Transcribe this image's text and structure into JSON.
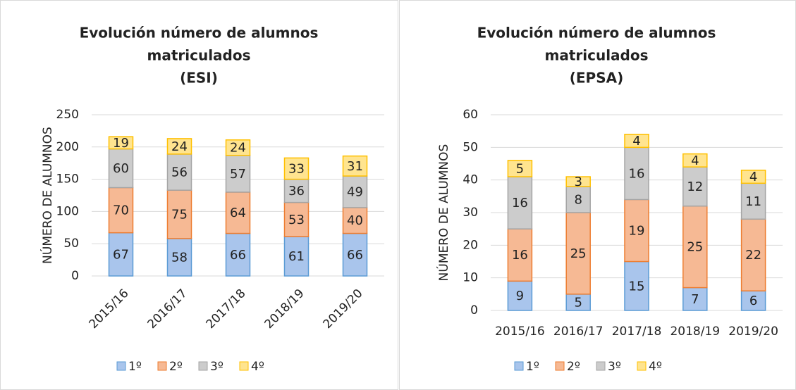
{
  "chart_data": [
    {
      "type": "stacked_bar",
      "title": [
        "Evolución número de alumnos",
        "matriculados",
        "(ESI)"
      ],
      "y_label": "NÚMERO DE ALUMNOS",
      "categories": [
        "2015/16",
        "2016/17",
        "2017/18",
        "2018/19",
        "2019/20"
      ],
      "series": [
        {
          "name": "1º",
          "color": "#a9c5ec",
          "values": [
            67,
            58,
            66,
            61,
            66
          ]
        },
        {
          "name": "2º",
          "color": "#f6b994",
          "values": [
            70,
            75,
            64,
            53,
            40
          ]
        },
        {
          "name": "3º",
          "color": "#cccccc",
          "values": [
            60,
            56,
            57,
            36,
            49
          ]
        },
        {
          "name": "4º",
          "color": "#ffe48f",
          "values": [
            19,
            24,
            24,
            33,
            31
          ]
        }
      ],
      "ylim": [
        0,
        250
      ],
      "yticks": [
        0,
        50,
        100,
        150,
        200,
        250
      ],
      "grid": true,
      "legend": "bottom",
      "x_label_rotation": -45
    },
    {
      "type": "stacked_bar",
      "title": [
        "Evolución número de alumnos",
        "matriculados",
        "(EPSA)"
      ],
      "y_label": "NÚMERO DE ALUMNOS",
      "categories": [
        "2015/16",
        "2016/17",
        "2017/18",
        "2018/19",
        "2019/20"
      ],
      "series": [
        {
          "name": "1º",
          "color": "#a9c5ec",
          "values": [
            9,
            5,
            15,
            7,
            6
          ]
        },
        {
          "name": "2º",
          "color": "#f6b994",
          "values": [
            16,
            25,
            19,
            25,
            22
          ]
        },
        {
          "name": "3º",
          "color": "#cccccc",
          "values": [
            16,
            8,
            16,
            12,
            11
          ]
        },
        {
          "name": "4º",
          "color": "#ffe48f",
          "values": [
            5,
            3,
            4,
            4,
            4
          ]
        }
      ],
      "ylim": [
        0,
        60
      ],
      "yticks": [
        0,
        10,
        20,
        30,
        40,
        50,
        60
      ],
      "grid": true,
      "legend": "bottom",
      "x_label_rotation": 0
    }
  ]
}
